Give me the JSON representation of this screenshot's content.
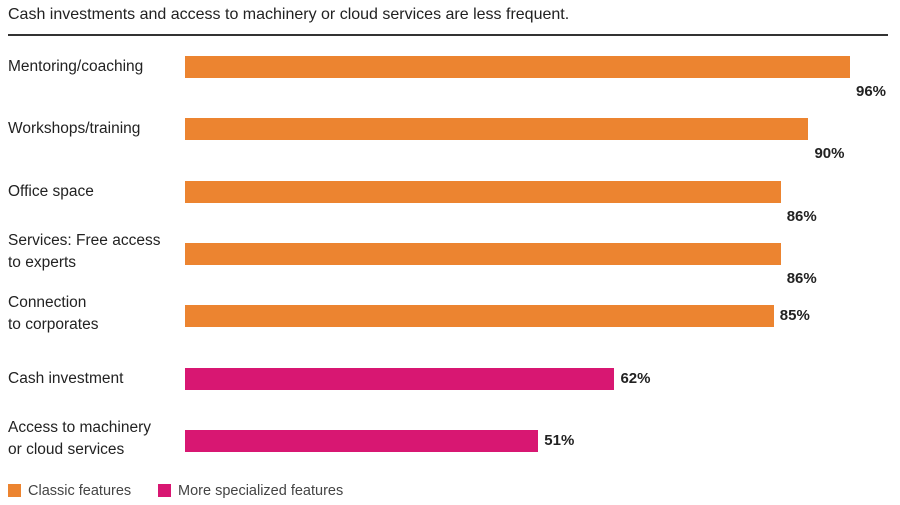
{
  "chart_data": {
    "type": "bar",
    "orientation": "horizontal",
    "title": "Cash investments and access to machinery or cloud services are less frequent.",
    "value_suffix": "%",
    "categories": [
      [
        "Mentoring/coaching"
      ],
      [
        "Workshops/training"
      ],
      [
        "Office space"
      ],
      [
        "Services: Free access",
        "to experts"
      ],
      [
        "Connection",
        "to corporates"
      ],
      [
        "Cash investment"
      ],
      [
        "Access to machinery",
        "or cloud services"
      ]
    ],
    "values": [
      96,
      90,
      86,
      86,
      85,
      62,
      51
    ],
    "groups": [
      0,
      0,
      0,
      0,
      0,
      1,
      1
    ],
    "legend": [
      {
        "name": "Classic features",
        "color": "#ec8430"
      },
      {
        "name": "More specialized features",
        "color": "#d81772"
      }
    ],
    "legend_position": "bottom-left",
    "xlim": [
      0,
      100
    ],
    "grid": false
  }
}
